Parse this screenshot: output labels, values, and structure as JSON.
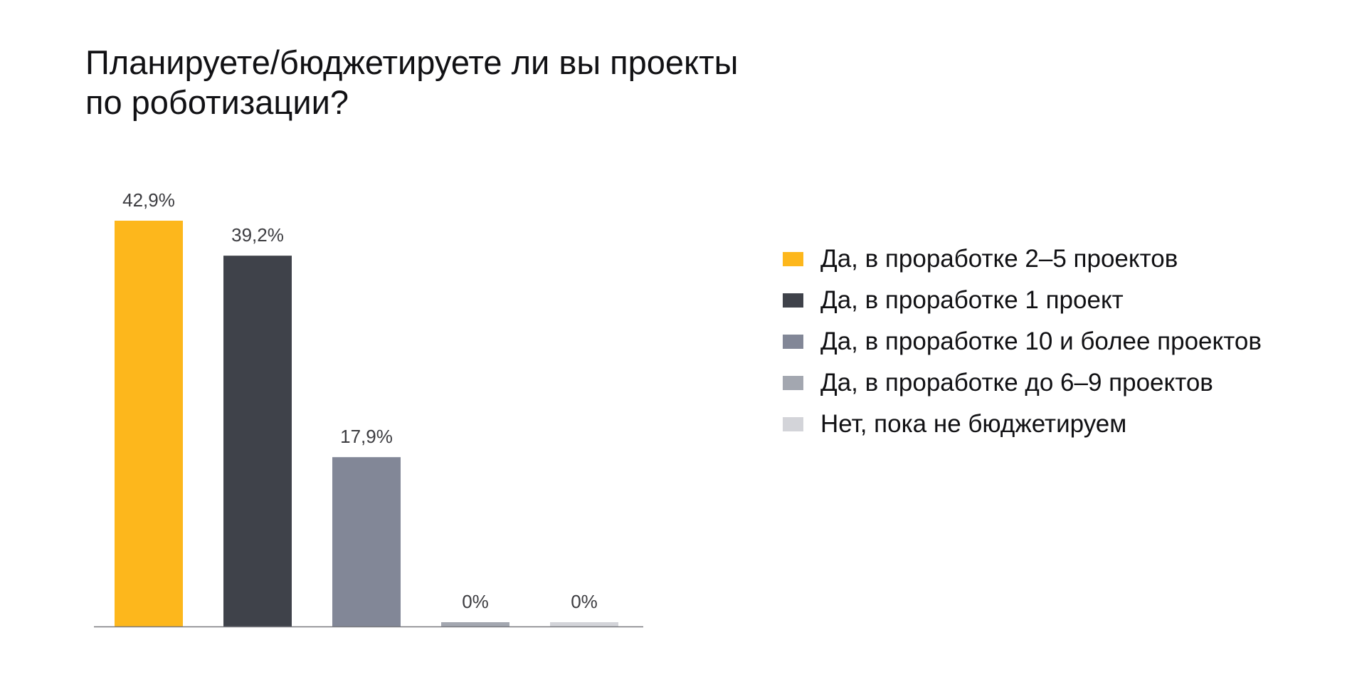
{
  "title_lines": [
    "Планируете/бюджетируете ли вы проекты",
    "по роботизации?"
  ],
  "colors": {
    "axis": "#7a7a80",
    "value_label": "#3c3c40"
  },
  "chart_data": {
    "type": "bar",
    "categories": [
      "Да, в проработке 2–5 проектов",
      "Да, в проработке 1 проект",
      "Да, в проработке 10 и более проектов",
      "Да, в проработке до 6–9 проектов",
      "Нет, пока не бюджетируем"
    ],
    "values": [
      42.9,
      39.2,
      17.9,
      0,
      0
    ],
    "value_labels": [
      "42,9%",
      "39,2%",
      "17,9%",
      "0%",
      "0%"
    ],
    "colors": [
      "#fdb71c",
      "#3f424a",
      "#828797",
      "#a3a7b0",
      "#d3d4d9"
    ],
    "ylim": [
      0,
      42.9
    ],
    "grid": false,
    "legend_position": "right"
  }
}
